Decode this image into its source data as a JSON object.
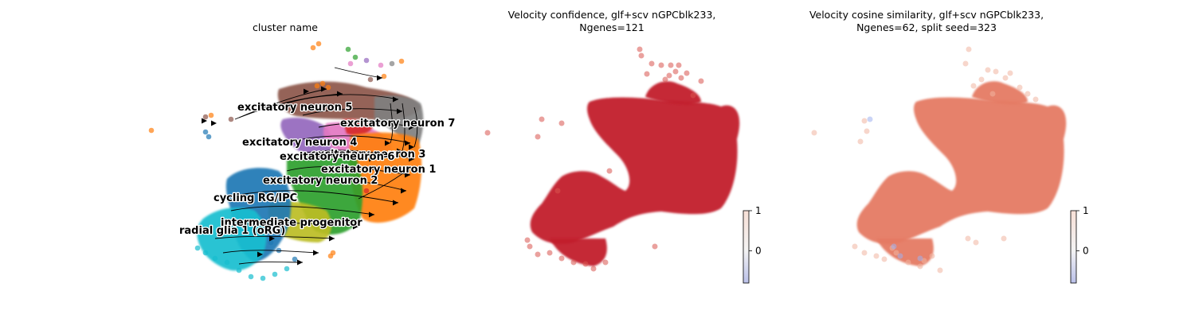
{
  "figure": {
    "panels": [
      {
        "title_line1": "cluster name",
        "title_line2": ""
      },
      {
        "title_line1": "Velocity confidence, glf+scv nGPCblk233,",
        "title_line2": "Ngenes=121"
      },
      {
        "title_line1": "Velocity cosine similarity, glf+scv nGPCblk233,",
        "title_line2": "Ngenes=62, split seed=323"
      }
    ]
  },
  "chart_data": [
    {
      "type": "scatter",
      "title": "cluster name",
      "subtitle": "",
      "streamlines": true,
      "axes_visible": false,
      "clusters": [
        {
          "label": "excitatory neuron 5",
          "color": "#8c564b"
        },
        {
          "label": "excitatory neuron 7",
          "color": "#7f7f7f"
        },
        {
          "label": "excitatory neuron 4",
          "color": "#9467bd"
        },
        {
          "label": "excitatory neuron 3",
          "color": "#e377c2"
        },
        {
          "label": "excitatory neuron 6",
          "color": "#d62728"
        },
        {
          "label": "excitatory neuron 1",
          "color": "#ff7f0e"
        },
        {
          "label": "excitatory neuron 2",
          "color": "#2ca02c"
        },
        {
          "label": "cycling RG/IPC",
          "color": "#1f77b4"
        },
        {
          "label": "intermediate progenitor",
          "color": "#bcbd22"
        },
        {
          "label": "radial glia 1 (oRG)",
          "color": "#17becf"
        }
      ]
    },
    {
      "type": "scatter",
      "title": "Velocity confidence, glf+scv nGPCblk233,",
      "subtitle": "Ngenes=121",
      "colormap": "coolwarm",
      "colorbar": {
        "ticks": [
          "1",
          "0"
        ],
        "min": -0.8,
        "max": 1
      },
      "dominant_value": 0.95,
      "axes_visible": false
    },
    {
      "type": "scatter",
      "title": "Velocity cosine similarity, glf+scv nGPCblk233,",
      "subtitle": "Ngenes=62, split seed=323",
      "colormap": "coolwarm",
      "colorbar": {
        "ticks": [
          "1",
          "0"
        ],
        "min": -0.8,
        "max": 1
      },
      "dominant_value": 0.7,
      "axes_visible": false
    }
  ]
}
